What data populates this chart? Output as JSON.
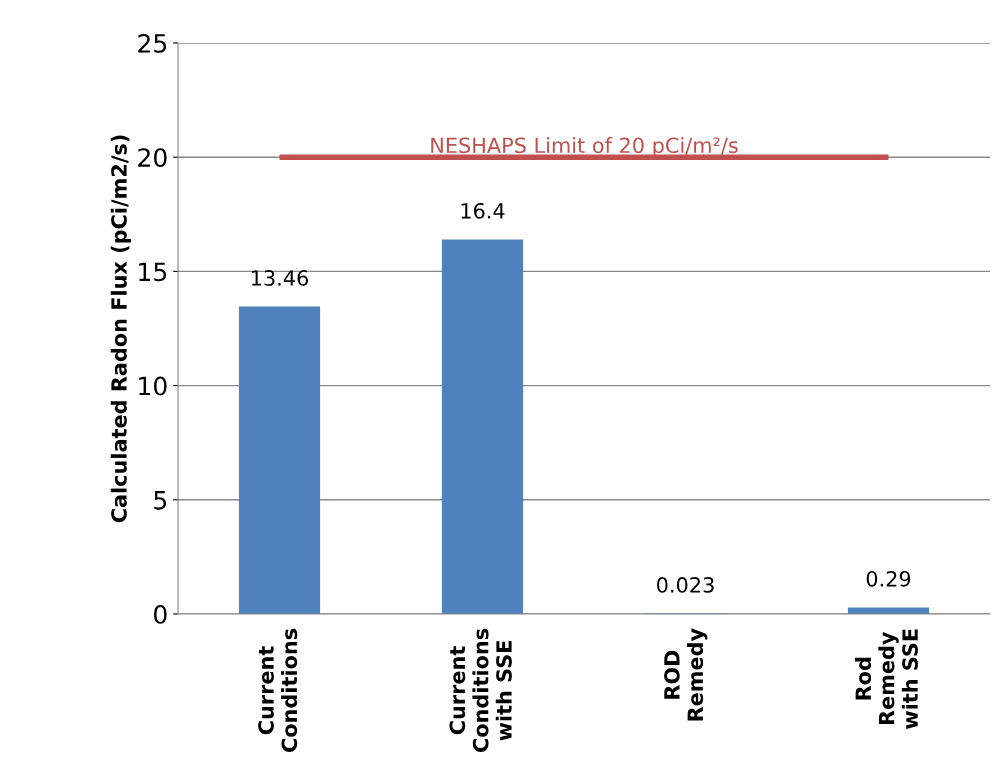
{
  "chart_data": {
    "type": "bar",
    "ylabel": "Calculated Radon Flux (pCi/m2/s)",
    "categories": [
      "Current\nConditions",
      "Current\nConditions\nwith SSE",
      "ROD\nRemedy",
      "Rod\nRemedy\nwith SSE"
    ],
    "values": [
      13.46,
      16.4,
      0.023,
      0.29
    ],
    "color": "#4f81bd",
    "data_labels": true,
    "ylim": [
      0,
      25
    ],
    "yticks": [
      0,
      5,
      10,
      15,
      20,
      25
    ],
    "grid": "y",
    "ref_lines": [
      {
        "axis": "y",
        "value": 20,
        "label": "NESHAPS Limit of 20 pCi/m²/s",
        "color": "#c0504d"
      }
    ]
  }
}
